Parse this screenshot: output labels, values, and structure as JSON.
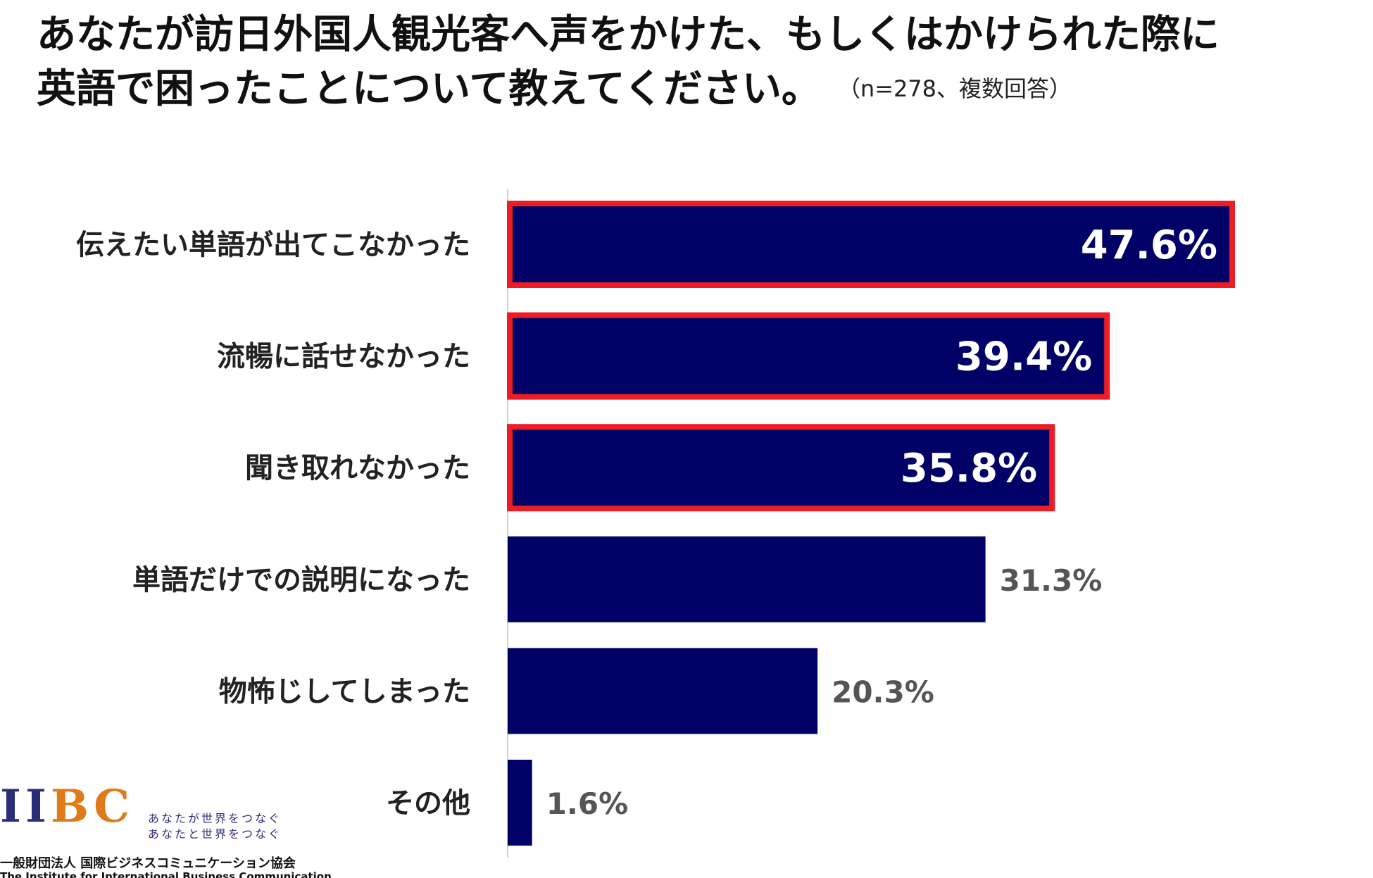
{
  "header": {
    "title_line1": "あなたが訪日外国人観光客へ声をかけた、もしくはかけられた際に",
    "title_line2": "英語で困ったことについて教えてください。",
    "subtitle": "（n=278、複数回答）"
  },
  "chart_data": {
    "type": "bar",
    "orientation": "horizontal",
    "title": "あなたが訪日外国人観光客へ声をかけた、もしくはかけられた際に英語で困ったことについて教えてください。",
    "subtitle": "（n=278、複数回答）",
    "xlim": [
      0,
      60
    ],
    "categories": [
      "伝えたい単語が出てこなかった",
      "流暢に話せなかった",
      "聞き取れなかった",
      "単語だけでの説明になった",
      "物怖じしてしまった",
      "その他"
    ],
    "values": [
      47.6,
      39.4,
      35.8,
      31.3,
      20.3,
      1.6
    ],
    "labels": [
      "47.6%",
      "39.4%",
      "35.8%",
      "31.3%",
      "20.3%",
      "1.6%"
    ],
    "highlighted": [
      true,
      true,
      true,
      false,
      false,
      false
    ],
    "grid": false,
    "bar_color": "#000066",
    "highlight_color": "#ee1c25"
  },
  "logo": {
    "mark_i": "II",
    "mark_bc": "BC",
    "tagline1": "あなたが世界をつなぐ",
    "tagline2": "あなたと世界をつなぐ",
    "name_jp": "一般財団法人 国際ビジネスコミュニケーション協会",
    "name_en": "The Institute for International Business Communication"
  }
}
